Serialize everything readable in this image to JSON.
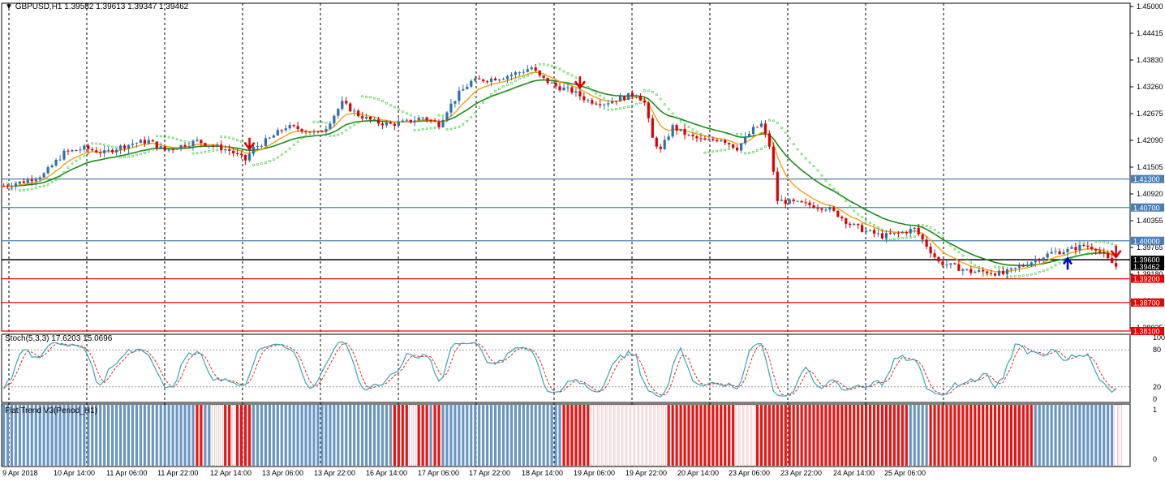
{
  "window": {
    "symbol": "GBPUSD,H1",
    "ohlc": "1.39582 1.39613 1.39347 1.39462"
  },
  "stoch_header": "Stoch(5,3,3) 17.6203 15.0696",
  "flat_header": "Flat Trend V3(Period_H1)",
  "colors": {
    "bull": "#2e6fad",
    "bear": "#dd0000",
    "ema_fast": "#f5a010",
    "ema_slow": "#1a8a1a",
    "psar": "#33cc33",
    "hline_blue": "#4a7fb5",
    "hline_red": "#ee0000",
    "stoch_main": "#3aa3b5",
    "stoch_signal": "#dd2222",
    "flat_blue": "#6a96c4",
    "flat_red": "#ee1111"
  },
  "chart_data": [
    {
      "type": "candlestick",
      "title": "GBPUSD,H1",
      "ylim": [
        1.381,
        1.45
      ],
      "y_ticks": [
        "1.45000",
        "1.44415",
        "1.43830",
        "1.43260",
        "1.42675",
        "1.42090",
        "1.41505",
        "1.40920",
        "1.40355",
        "1.39765",
        "1.39180",
        "1.38610",
        "1.38025"
      ],
      "x_ticks": [
        "9 Apr 2018",
        "10 Apr 14:00",
        "11 Apr 06:00",
        "11 Apr 22:00",
        "12 Apr 14:00",
        "13 Apr 06:00",
        "13 Apr 22:00",
        "16 Apr 14:00",
        "17 Apr 06:00",
        "17 Apr 22:00",
        "18 Apr 14:00",
        "19 Apr 06:00",
        "19 Apr 22:00",
        "20 Apr 14:00",
        "23 Apr 06:00",
        "23 Apr 22:00",
        "24 Apr 14:00",
        "25 Apr 06:00"
      ],
      "price_path_anchors": [
        [
          0,
          1.4115
        ],
        [
          5,
          1.4125
        ],
        [
          10,
          1.414
        ],
        [
          15,
          1.4185
        ],
        [
          20,
          1.4195
        ],
        [
          25,
          1.4185
        ],
        [
          28,
          1.4195
        ],
        [
          32,
          1.4205
        ],
        [
          36,
          1.421
        ],
        [
          40,
          1.419
        ],
        [
          44,
          1.42
        ],
        [
          48,
          1.421
        ],
        [
          52,
          1.42
        ],
        [
          56,
          1.419
        ],
        [
          60,
          1.417
        ],
        [
          62,
          1.4195
        ],
        [
          66,
          1.4215
        ],
        [
          70,
          1.424
        ],
        [
          74,
          1.4235
        ],
        [
          78,
          1.4225
        ],
        [
          80,
          1.424
        ],
        [
          84,
          1.429
        ],
        [
          88,
          1.4265
        ],
        [
          92,
          1.425
        ],
        [
          96,
          1.4245
        ],
        [
          100,
          1.425
        ],
        [
          104,
          1.426
        ],
        [
          108,
          1.4245
        ],
        [
          110,
          1.4275
        ],
        [
          113,
          1.431
        ],
        [
          116,
          1.4335
        ],
        [
          120,
          1.434
        ],
        [
          124,
          1.4345
        ],
        [
          128,
          1.4355
        ],
        [
          131,
          1.4365
        ],
        [
          133,
          1.4345
        ],
        [
          137,
          1.4325
        ],
        [
          141,
          1.4315
        ],
        [
          145,
          1.4295
        ],
        [
          149,
          1.429
        ],
        [
          153,
          1.43
        ],
        [
          157,
          1.431
        ],
        [
          159,
          1.429
        ],
        [
          161,
          1.4215
        ],
        [
          163,
          1.419
        ],
        [
          166,
          1.424
        ],
        [
          170,
          1.422
        ],
        [
          174,
          1.421
        ],
        [
          178,
          1.4215
        ],
        [
          182,
          1.4195
        ],
        [
          186,
          1.4235
        ],
        [
          188,
          1.4245
        ],
        [
          190,
          1.42
        ],
        [
          192,
          1.4085
        ],
        [
          196,
          1.408
        ],
        [
          200,
          1.4075
        ],
        [
          204,
          1.407
        ],
        [
          207,
          1.4055
        ],
        [
          210,
          1.4035
        ],
        [
          214,
          1.402
        ],
        [
          218,
          1.401
        ],
        [
          222,
          1.4015
        ],
        [
          226,
          1.4025
        ],
        [
          229,
          1.399
        ],
        [
          232,
          1.3955
        ],
        [
          236,
          1.3945
        ],
        [
          240,
          1.3935
        ],
        [
          244,
          1.3935
        ],
        [
          248,
          1.393
        ],
        [
          252,
          1.3945
        ],
        [
          256,
          1.396
        ],
        [
          260,
          1.3975
        ],
        [
          264,
          1.398
        ],
        [
          268,
          1.399
        ],
        [
          271,
          1.3985
        ],
        [
          274,
          1.396
        ],
        [
          276,
          1.3946
        ]
      ],
      "horizontal_levels": [
        {
          "value": 1.413,
          "label": "1.41300",
          "color": "blue"
        },
        {
          "value": 1.407,
          "label": "1.40700",
          "color": "blue"
        },
        {
          "value": 1.4,
          "label": "1.40000",
          "color": "blue"
        },
        {
          "value": 1.396,
          "label": "1.39600",
          "color": "black"
        },
        {
          "value": 1.392,
          "label": "1.39200",
          "color": "red"
        },
        {
          "value": 1.387,
          "label": "1.38700",
          "color": "red"
        },
        {
          "value": 1.381,
          "label": "1.38100",
          "color": "red"
        }
      ],
      "current_price": {
        "value": 1.39462,
        "label": "1.39462"
      },
      "series": [
        {
          "name": "EMA fast",
          "type": "line"
        },
        {
          "name": "EMA slow",
          "type": "line"
        },
        {
          "name": "Parabolic SAR",
          "type": "dots"
        }
      ],
      "signals": [
        {
          "type": "sell",
          "bar": 61
        },
        {
          "type": "sell",
          "bar": 143
        },
        {
          "type": "buy",
          "bar": 264
        },
        {
          "type": "sell",
          "bar": 276
        }
      ]
    },
    {
      "type": "line",
      "title": "Stoch(5,3,3) 17.6203 15.0696",
      "ylim": [
        0,
        100
      ],
      "y_ticks": [
        "100",
        "80",
        "20",
        "0"
      ],
      "levels": [
        80,
        20
      ],
      "series": [
        {
          "name": "Main",
          "last": 17.6203
        },
        {
          "name": "Signal",
          "last": 15.0696
        }
      ]
    },
    {
      "type": "bar",
      "title": "Flat Trend V3(Period_H1)",
      "ylim": [
        0,
        1
      ],
      "y_ticks": [
        "1",
        "0"
      ],
      "state_segments": [
        [
          0,
          48,
          "blue"
        ],
        [
          48,
          50,
          "red"
        ],
        [
          50,
          52,
          "blue"
        ],
        [
          52,
          55,
          "white"
        ],
        [
          55,
          57,
          "red"
        ],
        [
          57,
          58,
          "white"
        ],
        [
          58,
          62,
          "red"
        ],
        [
          62,
          97,
          "blue"
        ],
        [
          97,
          101,
          "red"
        ],
        [
          101,
          103,
          "white"
        ],
        [
          103,
          106,
          "red"
        ],
        [
          106,
          107,
          "blue"
        ],
        [
          107,
          109,
          "red"
        ],
        [
          109,
          139,
          "blue"
        ],
        [
          139,
          146,
          "red"
        ],
        [
          146,
          165,
          "white"
        ],
        [
          165,
          182,
          "red"
        ],
        [
          182,
          187,
          "white"
        ],
        [
          187,
          192,
          "red"
        ],
        [
          192,
          225,
          "red"
        ],
        [
          225,
          230,
          "blue"
        ],
        [
          230,
          256,
          "red"
        ],
        [
          256,
          276,
          "blue"
        ],
        [
          276,
          278,
          "white"
        ]
      ]
    }
  ]
}
